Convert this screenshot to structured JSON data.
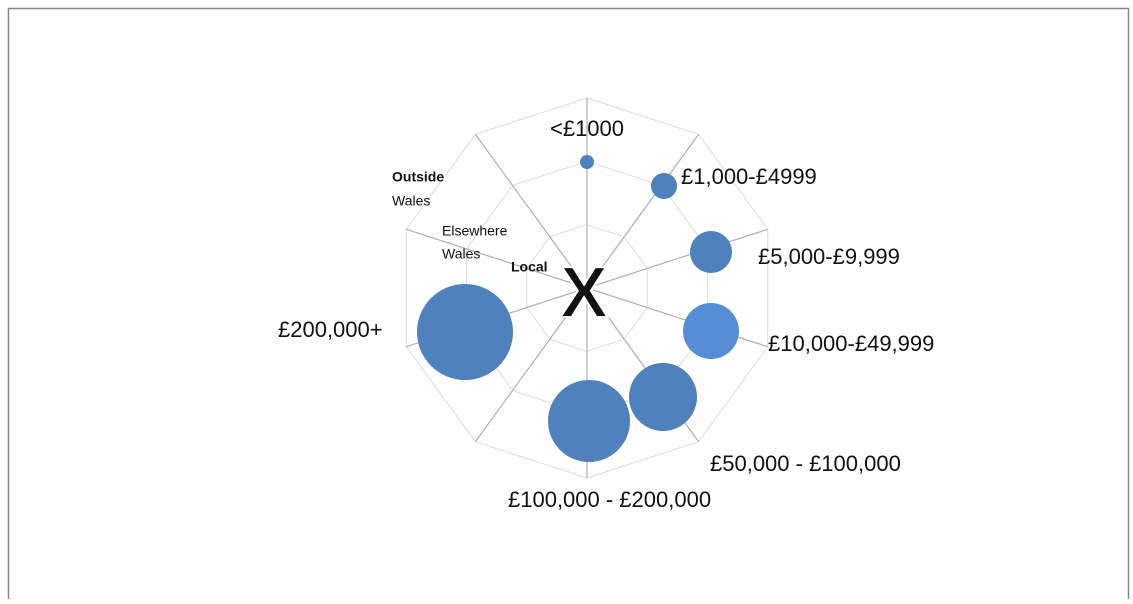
{
  "categories": [
    "<£1000",
    "£1,000-£4999",
    "£5,000-£9,999",
    "£10,000-£49,999",
    "£50,000 - £100,000",
    "£100,000 - £200,000",
    "£200,000+"
  ],
  "rings": [
    [
      "Outside",
      "Wales"
    ],
    [
      "Elsewhere",
      "Wales"
    ],
    [
      "Local"
    ]
  ],
  "center": "X"
}
